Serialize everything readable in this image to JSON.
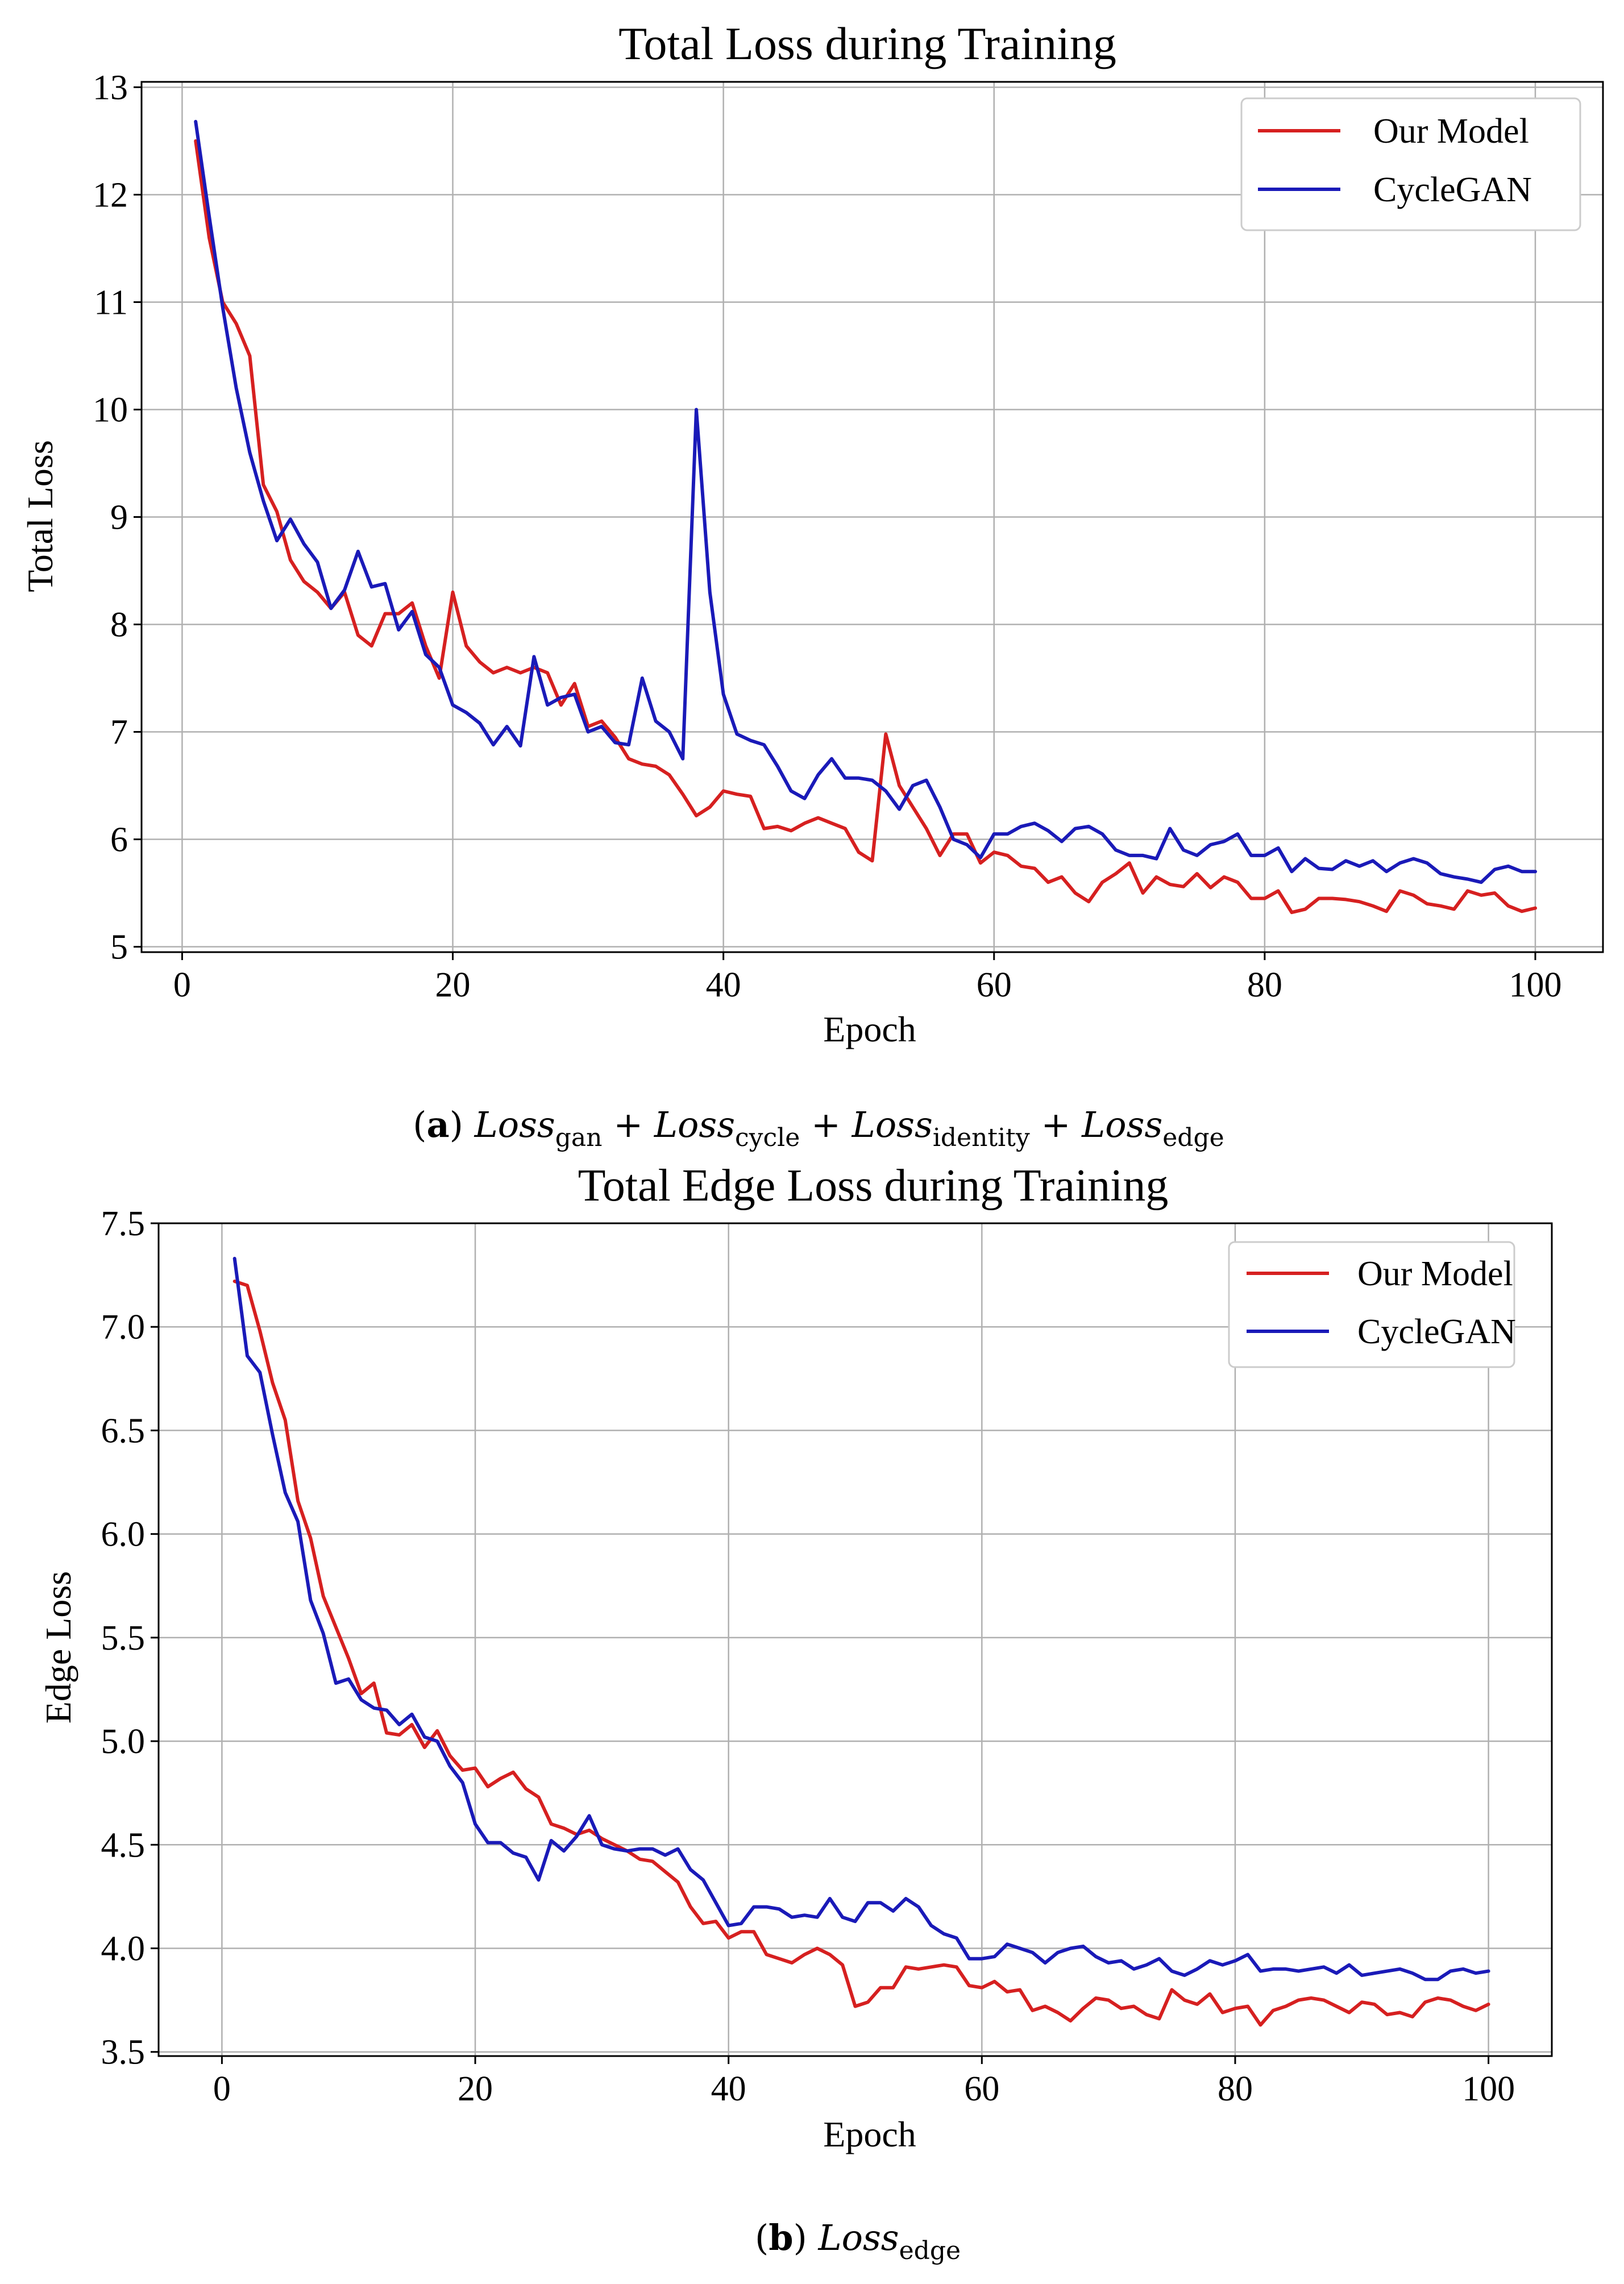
{
  "chart_data": [
    {
      "type": "line",
      "title": "Total Loss during Training",
      "xlabel": "Epoch",
      "ylabel": "Total Loss",
      "xlim": [
        -3,
        105
      ],
      "ylim": [
        4.95,
        13.05
      ],
      "xticks": [
        0,
        20,
        40,
        60,
        80,
        100
      ],
      "yticks": [
        5,
        6,
        7,
        8,
        9,
        10,
        11,
        12,
        13
      ],
      "grid": true,
      "legend_position": "top-right",
      "x": [
        1,
        2,
        3,
        4,
        5,
        6,
        7,
        8,
        9,
        10,
        11,
        12,
        13,
        14,
        15,
        16,
        17,
        18,
        19,
        20,
        21,
        22,
        23,
        24,
        25,
        26,
        27,
        28,
        29,
        30,
        31,
        32,
        33,
        34,
        35,
        36,
        37,
        38,
        39,
        40,
        41,
        42,
        43,
        44,
        45,
        46,
        47,
        48,
        49,
        50,
        51,
        52,
        53,
        54,
        55,
        56,
        57,
        58,
        59,
        60,
        61,
        62,
        63,
        64,
        65,
        66,
        67,
        68,
        69,
        70,
        71,
        72,
        73,
        74,
        75,
        76,
        77,
        78,
        79,
        80,
        81,
        82,
        83,
        84,
        85,
        86,
        87,
        88,
        89,
        90,
        91,
        92,
        93,
        94,
        95,
        96,
        97,
        98,
        99,
        100
      ],
      "series": [
        {
          "name": "Our Model",
          "color": "#d62020",
          "values": [
            12.5,
            11.6,
            11.0,
            10.8,
            10.5,
            9.3,
            9.05,
            8.6,
            8.4,
            8.3,
            8.15,
            8.3,
            7.9,
            7.8,
            8.1,
            8.1,
            8.2,
            7.8,
            7.5,
            8.3,
            7.8,
            7.65,
            7.55,
            7.6,
            7.55,
            7.6,
            7.55,
            7.25,
            7.45,
            7.05,
            7.1,
            6.95,
            6.75,
            6.7,
            6.68,
            6.6,
            6.42,
            6.22,
            6.3,
            6.45,
            6.42,
            6.4,
            6.1,
            6.12,
            6.08,
            6.15,
            6.2,
            6.15,
            6.1,
            5.88,
            5.8,
            6.98,
            6.5,
            6.3,
            6.1,
            5.85,
            6.05,
            6.05,
            5.78,
            5.88,
            5.85,
            5.75,
            5.73,
            5.6,
            5.65,
            5.5,
            5.42,
            5.6,
            5.68,
            5.78,
            5.5,
            5.65,
            5.58,
            5.56,
            5.68,
            5.55,
            5.65,
            5.6,
            5.45,
            5.45,
            5.52,
            5.32,
            5.35,
            5.45,
            5.45,
            5.44,
            5.42,
            5.38,
            5.33,
            5.52,
            5.48,
            5.4,
            5.38,
            5.35,
            5.52,
            5.48,
            5.5,
            5.38,
            5.33,
            5.36
          ]
        },
        {
          "name": "CycleGAN",
          "color": "#1a1ab8",
          "values": [
            12.68,
            11.8,
            10.95,
            10.2,
            9.6,
            9.15,
            8.78,
            8.98,
            8.75,
            8.58,
            8.15,
            8.32,
            8.68,
            8.35,
            8.38,
            7.95,
            8.12,
            7.72,
            7.6,
            7.25,
            7.18,
            7.08,
            6.88,
            7.05,
            6.87,
            7.7,
            7.25,
            7.32,
            7.35,
            7.0,
            7.05,
            6.9,
            6.88,
            7.5,
            7.1,
            7.0,
            6.75,
            10.0,
            8.3,
            7.35,
            6.98,
            6.92,
            6.88,
            6.68,
            6.45,
            6.38,
            6.6,
            6.75,
            6.57,
            6.57,
            6.55,
            6.45,
            6.28,
            6.5,
            6.55,
            6.3,
            6.0,
            5.95,
            5.83,
            6.05,
            6.05,
            6.12,
            6.15,
            6.08,
            5.98,
            6.1,
            6.12,
            6.05,
            5.9,
            5.85,
            5.85,
            5.82,
            6.1,
            5.9,
            5.85,
            5.95,
            5.98,
            6.05,
            5.85,
            5.85,
            5.92,
            5.7,
            5.82,
            5.73,
            5.72,
            5.8,
            5.75,
            5.8,
            5.7,
            5.78,
            5.82,
            5.78,
            5.68,
            5.65,
            5.63,
            5.6,
            5.72,
            5.75,
            5.7,
            5.7
          ]
        }
      ]
    },
    {
      "type": "line",
      "title": "Total Edge Loss during Training",
      "xlabel": "Epoch",
      "ylabel": "Edge Loss",
      "xlim": [
        -5,
        105
      ],
      "ylim": [
        3.48,
        7.5
      ],
      "xticks": [
        0,
        20,
        40,
        60,
        80,
        100
      ],
      "yticks": [
        3.5,
        4.0,
        4.5,
        5.0,
        5.5,
        6.0,
        6.5,
        7.0,
        7.5
      ],
      "ytick_labels": [
        "3.5",
        "4.0",
        "4.5",
        "5.0",
        "5.5",
        "6.0",
        "6.5",
        "7.0",
        "7.5"
      ],
      "grid": true,
      "legend_position": "top-right",
      "x": [
        1,
        2,
        3,
        4,
        5,
        6,
        7,
        8,
        9,
        10,
        11,
        12,
        13,
        14,
        15,
        16,
        17,
        18,
        19,
        20,
        21,
        22,
        23,
        24,
        25,
        26,
        27,
        28,
        29,
        30,
        31,
        32,
        33,
        34,
        35,
        36,
        37,
        38,
        39,
        40,
        41,
        42,
        43,
        44,
        45,
        46,
        47,
        48,
        49,
        50,
        51,
        52,
        53,
        54,
        55,
        56,
        57,
        58,
        59,
        60,
        61,
        62,
        63,
        64,
        65,
        66,
        67,
        68,
        69,
        70,
        71,
        72,
        73,
        74,
        75,
        76,
        77,
        78,
        79,
        80,
        81,
        82,
        83,
        84,
        85,
        86,
        87,
        88,
        89,
        90,
        91,
        92,
        93,
        94,
        95,
        96,
        97,
        98,
        99,
        100
      ],
      "series": [
        {
          "name": "Our Model",
          "color": "#d62020",
          "values": [
            7.22,
            7.2,
            6.98,
            6.73,
            6.55,
            6.16,
            5.98,
            5.7,
            5.55,
            5.4,
            5.23,
            5.28,
            5.04,
            5.03,
            5.08,
            4.97,
            5.05,
            4.93,
            4.86,
            4.87,
            4.78,
            4.82,
            4.85,
            4.77,
            4.73,
            4.6,
            4.58,
            4.55,
            4.57,
            4.53,
            4.5,
            4.47,
            4.43,
            4.42,
            4.37,
            4.32,
            4.2,
            4.12,
            4.13,
            4.05,
            4.08,
            4.08,
            3.97,
            3.95,
            3.93,
            3.97,
            4.0,
            3.97,
            3.92,
            3.72,
            3.74,
            3.81,
            3.81,
            3.91,
            3.9,
            3.91,
            3.92,
            3.91,
            3.82,
            3.81,
            3.84,
            3.79,
            3.8,
            3.7,
            3.72,
            3.69,
            3.65,
            3.71,
            3.76,
            3.75,
            3.71,
            3.72,
            3.68,
            3.66,
            3.8,
            3.75,
            3.73,
            3.78,
            3.69,
            3.71,
            3.72,
            3.63,
            3.7,
            3.72,
            3.75,
            3.76,
            3.75,
            3.72,
            3.69,
            3.74,
            3.73,
            3.68,
            3.69,
            3.67,
            3.74,
            3.76,
            3.75,
            3.72,
            3.7,
            3.73
          ]
        },
        {
          "name": "CycleGAN",
          "color": "#1a1ab8",
          "values": [
            7.33,
            6.86,
            6.78,
            6.48,
            6.2,
            6.06,
            5.68,
            5.52,
            5.28,
            5.3,
            5.2,
            5.16,
            5.15,
            5.08,
            5.13,
            5.02,
            5.0,
            4.88,
            4.8,
            4.6,
            4.51,
            4.51,
            4.46,
            4.44,
            4.33,
            4.52,
            4.47,
            4.54,
            4.64,
            4.5,
            4.48,
            4.47,
            4.48,
            4.48,
            4.45,
            4.48,
            4.38,
            4.33,
            4.22,
            4.11,
            4.12,
            4.2,
            4.2,
            4.19,
            4.15,
            4.16,
            4.15,
            4.24,
            4.15,
            4.13,
            4.22,
            4.22,
            4.18,
            4.24,
            4.2,
            4.11,
            4.07,
            4.05,
            3.95,
            3.95,
            3.96,
            4.02,
            4.0,
            3.98,
            3.93,
            3.98,
            4.0,
            4.01,
            3.96,
            3.93,
            3.94,
            3.9,
            3.92,
            3.95,
            3.89,
            3.87,
            3.9,
            3.94,
            3.92,
            3.94,
            3.97,
            3.89,
            3.9,
            3.9,
            3.89,
            3.9,
            3.91,
            3.88,
            3.92,
            3.87,
            3.88,
            3.89,
            3.9,
            3.88,
            3.85,
            3.85,
            3.89,
            3.9,
            3.88,
            3.89
          ]
        }
      ]
    }
  ],
  "captions": {
    "a": {
      "label": "a",
      "term": "Loss",
      "subs": [
        "gan",
        "cycle",
        "identity",
        "edge"
      ],
      "op": "+"
    },
    "b": {
      "label": "b",
      "term": "Loss",
      "subs": [
        "edge"
      ]
    }
  }
}
